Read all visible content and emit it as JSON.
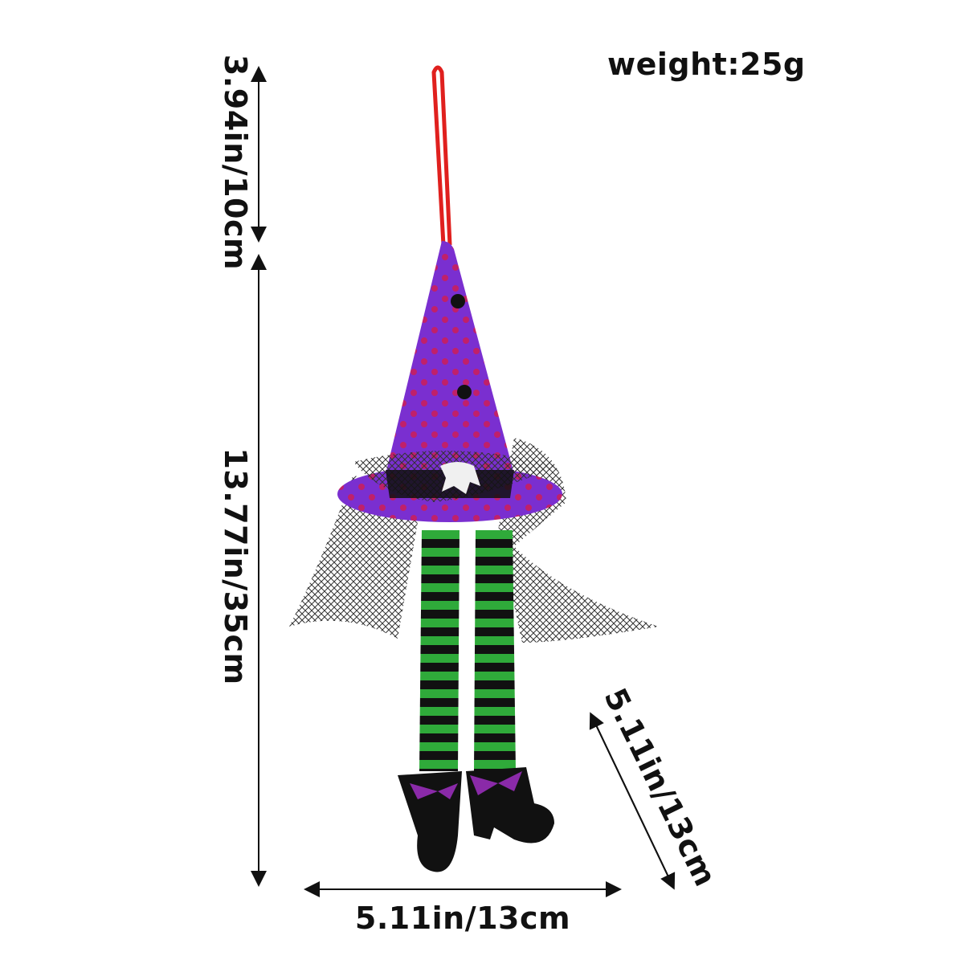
{
  "weight": "weight:25g",
  "dimensions": {
    "hanger_height": "3.94in/10cm",
    "body_height": "13.77in/35cm",
    "depth": "5.11in/13cm",
    "width": "5.11in/13cm"
  },
  "colors": {
    "hat": "#7a2fd0",
    "stripe_green": "#2faa3a",
    "stripe_black": "#111111",
    "loop": "#e0201e"
  }
}
